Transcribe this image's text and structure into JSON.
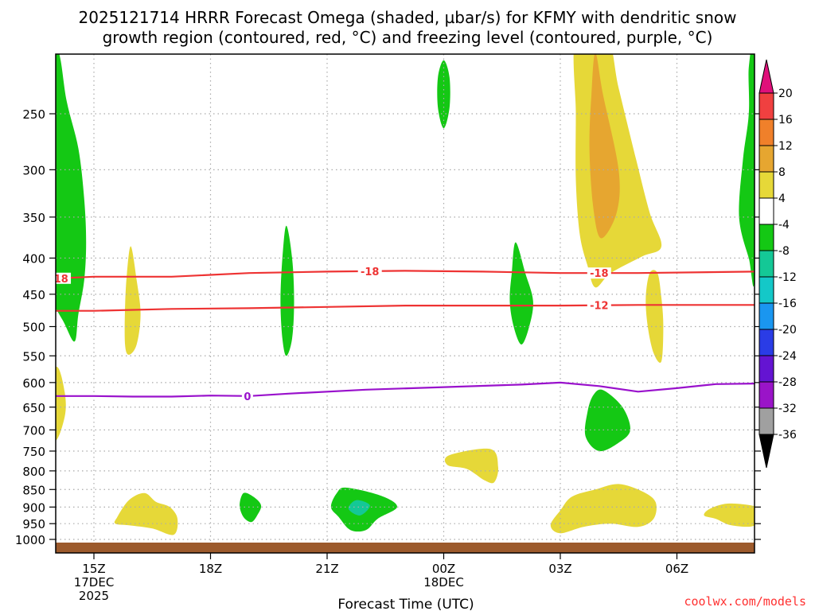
{
  "header": {
    "title_line1": "2025121714 HRRR Forecast Omega (shaded, µbar/s) for KFMY with dendritic snow",
    "title_line2": "growth region (contoured, red, °C) and freezing level (contoured, purple, °C)"
  },
  "footer": {
    "credit": "coolwx.com/models"
  },
  "colors": {
    "dgz_contour": "#ee3333",
    "freezing_contour": "#9911cc",
    "ground": "#9c5a2c",
    "grid": "#aaaaaa"
  },
  "chart_data": {
    "type": "heatmap",
    "title": "2025121714 HRRR Forecast Omega (shaded, µbar/s) for KFMY with dendritic snow growth region (contoured, red, °C) and freezing level (contoured, purple, °C)",
    "xlabel": "Forecast Time (UTC)",
    "ylabel": "",
    "x_unit": "hours from 2025-12-17 14Z",
    "xlim": [
      0,
      18
    ],
    "ylim": [
      1025,
      195
    ],
    "y_scale": "log pressure (hPa), inverted",
    "grid": true,
    "x_ticks": [
      {
        "x": 1,
        "label": "15Z",
        "sub1": "17DEC",
        "sub2": "2025"
      },
      {
        "x": 4,
        "label": "18Z",
        "sub1": "",
        "sub2": ""
      },
      {
        "x": 7,
        "label": "21Z",
        "sub1": "",
        "sub2": ""
      },
      {
        "x": 10,
        "label": "00Z",
        "sub1": "18DEC",
        "sub2": ""
      },
      {
        "x": 13,
        "label": "03Z",
        "sub1": "",
        "sub2": ""
      },
      {
        "x": 16,
        "label": "06Z",
        "sub1": "",
        "sub2": ""
      }
    ],
    "y_ticks": [
      250,
      300,
      350,
      400,
      450,
      500,
      550,
      600,
      650,
      700,
      750,
      800,
      850,
      900,
      950,
      1000
    ],
    "colorbar": {
      "labels": [
        "20",
        "16",
        "12",
        "8",
        "4",
        "-4",
        "-8",
        "-12",
        "-16",
        "-20",
        "-24",
        "-28",
        "-32",
        "-36"
      ],
      "bins": [
        {
          "lo": 16,
          "hi": 20,
          "color": "#f04040"
        },
        {
          "lo": 12,
          "hi": 16,
          "color": "#f0802a"
        },
        {
          "lo": 8,
          "hi": 12,
          "color": "#e6a630"
        },
        {
          "lo": 4,
          "hi": 8,
          "color": "#e6d838"
        },
        {
          "lo": -4,
          "hi": 4,
          "color": "#ffffff"
        },
        {
          "lo": -8,
          "hi": -4,
          "color": "#14c814"
        },
        {
          "lo": -12,
          "hi": -8,
          "color": "#14c896"
        },
        {
          "lo": -16,
          "hi": -12,
          "color": "#14c8c8"
        },
        {
          "lo": -20,
          "hi": -16,
          "color": "#1a96f0"
        },
        {
          "lo": -24,
          "hi": -20,
          "color": "#2a3ce6"
        },
        {
          "lo": -28,
          "hi": -24,
          "color": "#6414d2"
        },
        {
          "lo": -32,
          "hi": -28,
          "color": "#9a14c8"
        },
        {
          "lo": -36,
          "hi": -32,
          "color": "#a0a0a0"
        }
      ],
      "top_arrow_color": "#e0107a",
      "bottom_arrow_color": "#000000"
    },
    "omega_regions": [
      {
        "color": "#14c814",
        "points": [
          [
            -0.2,
            197
          ],
          [
            0.1,
            205
          ],
          [
            0.3,
            240
          ],
          [
            0.6,
            280
          ],
          [
            0.75,
            330
          ],
          [
            0.8,
            380
          ],
          [
            0.75,
            430
          ],
          [
            0.6,
            480
          ],
          [
            0.5,
            525
          ],
          [
            0.2,
            490
          ],
          [
            -0.2,
            450
          ],
          [
            -0.5,
            420
          ],
          [
            -0.5,
            380
          ],
          [
            -0.6,
            330
          ],
          [
            -0.55,
            280
          ],
          [
            -0.4,
            240
          ],
          [
            -0.3,
            205
          ]
        ]
      },
      {
        "color": "#e6d838",
        "points": [
          [
            1.95,
            385
          ],
          [
            2.1,
            430
          ],
          [
            2.2,
            480
          ],
          [
            2.1,
            530
          ],
          [
            1.9,
            548
          ],
          [
            1.8,
            530
          ],
          [
            1.8,
            470
          ],
          [
            1.85,
            420
          ]
        ]
      },
      {
        "color": "#14c814",
        "points": [
          [
            5.95,
            360
          ],
          [
            6.1,
            400
          ],
          [
            6.15,
            460
          ],
          [
            6.1,
            520
          ],
          [
            5.95,
            550
          ],
          [
            5.85,
            520
          ],
          [
            5.8,
            460
          ],
          [
            5.85,
            400
          ]
        ]
      },
      {
        "color": "#14c814",
        "points": [
          [
            10.0,
            210
          ],
          [
            10.15,
            222
          ],
          [
            10.15,
            245
          ],
          [
            10.0,
            262
          ],
          [
            9.85,
            245
          ],
          [
            9.85,
            222
          ]
        ]
      },
      {
        "color": "#14c814",
        "points": [
          [
            11.85,
            380
          ],
          [
            12.1,
            420
          ],
          [
            12.3,
            460
          ],
          [
            12.2,
            500
          ],
          [
            12.0,
            530
          ],
          [
            11.8,
            500
          ],
          [
            11.7,
            460
          ],
          [
            11.75,
            420
          ]
        ]
      },
      {
        "color": "#e6d838",
        "points": [
          [
            13.4,
            195
          ],
          [
            14.2,
            195
          ],
          [
            14.5,
            230
          ],
          [
            14.95,
            290
          ],
          [
            15.3,
            345
          ],
          [
            15.6,
            385
          ],
          [
            15.1,
            398
          ],
          [
            14.3,
            420
          ],
          [
            13.9,
            440
          ],
          [
            13.7,
            410
          ],
          [
            13.5,
            370
          ],
          [
            13.4,
            310
          ],
          [
            13.4,
            250
          ]
        ]
      },
      {
        "color": "#e6a630",
        "points": [
          [
            13.9,
            205
          ],
          [
            14.1,
            235
          ],
          [
            14.5,
            300
          ],
          [
            14.45,
            345
          ],
          [
            14.05,
            375
          ],
          [
            13.85,
            340
          ],
          [
            13.75,
            280
          ],
          [
            13.8,
            235
          ]
        ]
      },
      {
        "color": "#e6d838",
        "points": [
          [
            15.5,
            420
          ],
          [
            15.6,
            455
          ],
          [
            15.65,
            500
          ],
          [
            15.6,
            560
          ],
          [
            15.4,
            545
          ],
          [
            15.25,
            500
          ],
          [
            15.2,
            455
          ],
          [
            15.3,
            420
          ]
        ]
      },
      {
        "color": "#14c814",
        "points": [
          [
            17.85,
            215
          ],
          [
            18.0,
            205
          ],
          [
            18.0,
            420
          ],
          [
            17.85,
            400
          ],
          [
            17.6,
            350
          ],
          [
            17.7,
            290
          ],
          [
            17.85,
            250
          ]
        ]
      },
      {
        "color": "#e6d838",
        "points": [
          [
            0.05,
            570
          ],
          [
            0.25,
            620
          ],
          [
            0.25,
            670
          ],
          [
            0.0,
            725
          ],
          [
            -0.25,
            660
          ],
          [
            -0.25,
            610
          ]
        ]
      },
      {
        "color": "#14c814",
        "points": [
          [
            14.1,
            615
          ],
          [
            14.6,
            650
          ],
          [
            14.8,
            700
          ],
          [
            14.5,
            730
          ],
          [
            14.0,
            750
          ],
          [
            13.65,
            715
          ],
          [
            13.7,
            660
          ],
          [
            13.85,
            625
          ]
        ]
      },
      {
        "color": "#e6d838",
        "points": [
          [
            10.15,
            760
          ],
          [
            11.2,
            745
          ],
          [
            11.4,
            790
          ],
          [
            11.3,
            830
          ],
          [
            11.05,
            825
          ],
          [
            10.6,
            795
          ],
          [
            10.1,
            785
          ]
        ]
      },
      {
        "color": "#e6d838",
        "points": [
          [
            13.0,
            910
          ],
          [
            13.3,
            870
          ],
          [
            13.9,
            850
          ],
          [
            14.5,
            835
          ],
          [
            15.1,
            855
          ],
          [
            15.45,
            885
          ],
          [
            15.4,
            935
          ],
          [
            15.0,
            960
          ],
          [
            14.3,
            950
          ],
          [
            13.6,
            960
          ],
          [
            13.0,
            980
          ],
          [
            12.75,
            955
          ]
        ]
      },
      {
        "color": "#e6d838",
        "points": [
          [
            16.85,
            905
          ],
          [
            17.3,
            890
          ],
          [
            17.9,
            895
          ],
          [
            18.0,
            905
          ],
          [
            18.0,
            955
          ],
          [
            17.4,
            955
          ],
          [
            17.0,
            935
          ],
          [
            16.7,
            925
          ]
        ]
      },
      {
        "color": "#e6d838",
        "points": [
          [
            1.9,
            880
          ],
          [
            2.3,
            860
          ],
          [
            2.6,
            885
          ],
          [
            2.95,
            900
          ],
          [
            3.15,
            935
          ],
          [
            3.05,
            985
          ],
          [
            2.5,
            965
          ],
          [
            1.9,
            955
          ],
          [
            1.55,
            950
          ],
          [
            1.6,
            930
          ]
        ]
      },
      {
        "color": "#14c814",
        "points": [
          [
            4.85,
            860
          ],
          [
            5.1,
            870
          ],
          [
            5.3,
            895
          ],
          [
            5.2,
            925
          ],
          [
            5.05,
            945
          ],
          [
            4.85,
            930
          ],
          [
            4.75,
            895
          ]
        ]
      },
      {
        "color": "#14c814",
        "points": [
          [
            7.5,
            845
          ],
          [
            8.4,
            868
          ],
          [
            8.8,
            900
          ],
          [
            8.3,
            935
          ],
          [
            8.0,
            970
          ],
          [
            7.6,
            970
          ],
          [
            7.3,
            930
          ],
          [
            7.1,
            900
          ],
          [
            7.25,
            860
          ]
        ]
      },
      {
        "color": "#14c896",
        "points": [
          [
            7.75,
            880
          ],
          [
            8.1,
            895
          ],
          [
            7.85,
            925
          ],
          [
            7.55,
            905
          ]
        ]
      }
    ],
    "dgz_contours": [
      {
        "label": "-18",
        "label_positions": [
          0.1,
          8.1,
          14.0
        ],
        "points": [
          [
            -1.05,
            430
          ],
          [
            1,
            425
          ],
          [
            3,
            425
          ],
          [
            5,
            420
          ],
          [
            7,
            418
          ],
          [
            9,
            417
          ],
          [
            11,
            418
          ],
          [
            13,
            420
          ],
          [
            15,
            420
          ],
          [
            18,
            418
          ]
        ]
      },
      {
        "label": "-12",
        "label_positions": [
          14.0
        ],
        "points": [
          [
            -1.05,
            475
          ],
          [
            1,
            475
          ],
          [
            3,
            472
          ],
          [
            5,
            471
          ],
          [
            7,
            469
          ],
          [
            9,
            467
          ],
          [
            11,
            467
          ],
          [
            13,
            467
          ],
          [
            15,
            466
          ],
          [
            18,
            466
          ]
        ]
      }
    ],
    "freezing_contour": {
      "label": "0",
      "label_positions": [
        4.95
      ],
      "points": [
        [
          -1.05,
          623
        ],
        [
          0,
          627
        ],
        [
          1,
          627
        ],
        [
          2,
          628
        ],
        [
          3,
          628
        ],
        [
          4,
          626
        ],
        [
          5,
          627
        ],
        [
          6,
          622
        ],
        [
          8,
          614
        ],
        [
          10,
          609
        ],
        [
          12,
          604
        ],
        [
          13,
          600
        ],
        [
          14,
          607
        ],
        [
          15,
          618
        ],
        [
          16,
          611
        ],
        [
          17,
          603
        ],
        [
          18,
          602
        ]
      ]
    }
  }
}
